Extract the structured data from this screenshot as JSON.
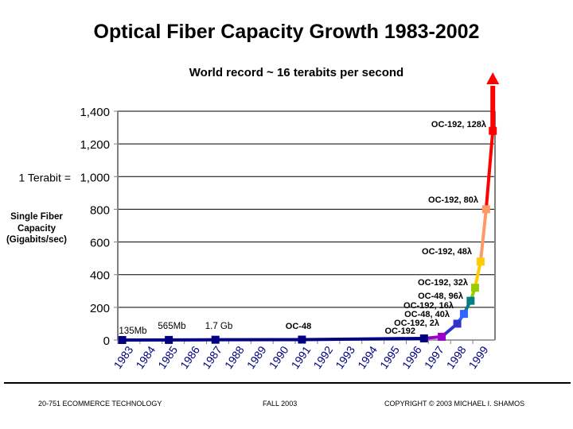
{
  "chart_data": {
    "type": "line",
    "title": "Optical Fiber Capacity Growth 1983-2002",
    "subtitle": "World record ~ 16 terabits per second",
    "ylabel": "Single Fiber Capacity (Gigabits/sec)",
    "xlabel": "",
    "ylim": [
      0,
      1400
    ],
    "xlim": [
      1983,
      2000
    ],
    "yticks": [
      {
        "v": 0,
        "label": "0"
      },
      {
        "v": 200,
        "label": "200"
      },
      {
        "v": 400,
        "label": "400"
      },
      {
        "v": 600,
        "label": "600"
      },
      {
        "v": 800,
        "label": "800"
      },
      {
        "v": 1000,
        "label": "1,000"
      },
      {
        "v": 1200,
        "label": "1,200"
      },
      {
        "v": 1400,
        "label": "1,400"
      }
    ],
    "y_annotation": "1 Terabit =",
    "xticks": [
      "1983",
      "1984",
      "1985",
      "1986",
      "1987",
      "1988",
      "1989",
      "1990",
      "1991",
      "1992",
      "1993",
      "1994",
      "1995",
      "1996",
      "1997",
      "1998",
      "1999"
    ],
    "grid": true,
    "points": [
      {
        "x": 1983.2,
        "y": 0.135,
        "label": "135Mb",
        "color": "#000080"
      },
      {
        "x": 1985.3,
        "y": 0.565,
        "label": "565Mb",
        "color": "#000080"
      },
      {
        "x": 1987.4,
        "y": 1.7,
        "label": "1.7 Gb",
        "color": "#000080"
      },
      {
        "x": 1991.3,
        "y": 2.5,
        "label": "OC-48",
        "color": "#000080"
      },
      {
        "x": 1996.8,
        "y": 10,
        "label": "OC-192",
        "color": "#000080"
      },
      {
        "x": 1997.6,
        "y": 20,
        "label": "OC-192, 2λ",
        "color": "#9900cc"
      },
      {
        "x": 1998.3,
        "y": 100,
        "label": "OC-48, 40λ",
        "color": "#3333cc"
      },
      {
        "x": 1998.6,
        "y": 160,
        "label": "OC-192, 16λ",
        "color": "#3366ff"
      },
      {
        "x": 1998.9,
        "y": 240,
        "label": "OC-48, 96λ",
        "color": "#008080"
      },
      {
        "x": 1999.1,
        "y": 320,
        "label": "OC-192, 32λ",
        "color": "#99cc00"
      },
      {
        "x": 1999.35,
        "y": 480,
        "label": "OC-192, 48λ",
        "color": "#ffcc00"
      },
      {
        "x": 1999.6,
        "y": 800,
        "label": "OC-192, 80λ",
        "color": "#ff9966"
      },
      {
        "x": 1999.9,
        "y": 1280,
        "label": "OC-192, 128λ",
        "color": "#ff0000"
      }
    ],
    "arrow": {
      "label": "World record ~ 16 terabits per second",
      "color": "#ff0000"
    }
  },
  "footer": {
    "left": "20-751 ECOMMERCE TECHNOLOGY",
    "center": "FALL 2003",
    "right": "COPYRIGHT © 2003 MICHAEL I. SHAMOS"
  }
}
